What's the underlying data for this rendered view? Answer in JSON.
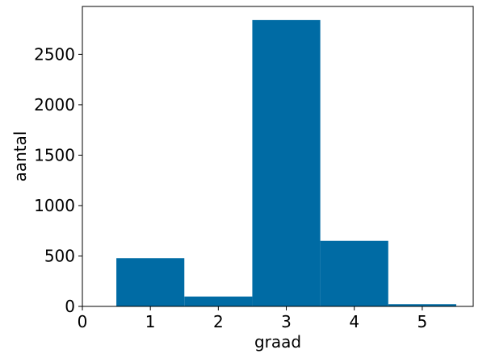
{
  "chart_data": {
    "type": "bar",
    "title": "",
    "xlabel": "graad",
    "ylabel": "aantal",
    "categories": [
      "1",
      "2",
      "3",
      "4",
      "5"
    ],
    "x": [
      1,
      2,
      3,
      4,
      5
    ],
    "values": [
      478,
      98,
      2840,
      650,
      22
    ],
    "bar_width": 1,
    "xlim": [
      0,
      5.75
    ],
    "ylim": [
      0,
      2975
    ],
    "xticks": [
      0,
      1,
      2,
      3,
      4,
      5
    ],
    "xtick_labels": [
      "0",
      "1",
      "2",
      "3",
      "4",
      "5"
    ],
    "yticks": [
      0,
      500,
      1000,
      1500,
      2000,
      2500
    ],
    "ytick_labels": [
      "0",
      "500",
      "1000",
      "1500",
      "2000",
      "2500"
    ],
    "grid": false,
    "bar_color": "#006BA4"
  }
}
